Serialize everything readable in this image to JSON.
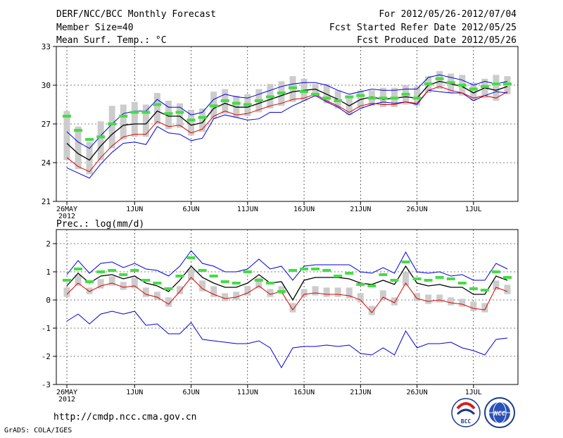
{
  "header": {
    "title_left": "DERF/NCC/BCC Monthly Forecast",
    "member_size": "Member Size=40",
    "top_variable": "Mean Surf. Temp.: °C",
    "range": "For 2012/05/26-2012/07/04",
    "fcst_started": "Fcst Started Refer Date 2012/05/25",
    "fcst_produced": "Fcst Produced Date 2012/05/26"
  },
  "footer": {
    "url": "http://cmdp.ncc.cma.gov.cn",
    "grads": "GrADS: COLA/IGES",
    "logo_bcc": "BCC",
    "logo_ncc": "NCC"
  },
  "colors": {
    "frame": "#000000",
    "grid": "#000000",
    "range_bar": "#cccccc",
    "ensemble_mean": "#000000",
    "upper_bound": "#0000dd",
    "lower_bound": "#0000dd",
    "lower_pct": "#dd0000",
    "climatology": "#44dd44"
  },
  "chart_data": [
    {
      "type": "line",
      "title": "Mean Surf. Temp.: °C",
      "days": 40,
      "x_tick_labels": [
        "26MAY",
        "1JUN",
        "6JUN",
        "11JUN",
        "16JUN",
        "21JUN",
        "26JUN",
        "1JUL"
      ],
      "x_tick_days": [
        0,
        6,
        11,
        16,
        21,
        26,
        31,
        36
      ],
      "x_sub_label": "2012",
      "ylim": [
        21,
        33
      ],
      "y_ticks": [
        21,
        24,
        27,
        30,
        33
      ],
      "grid": true,
      "series": [
        {
          "name": "ensemble_max",
          "values": [
            23.6,
            23.2,
            22.8,
            23.9,
            24.8,
            25.5,
            25.6,
            25.4,
            26.8,
            26.3,
            26.2,
            25.7,
            25.9,
            27.4,
            27.7,
            27.5,
            27.3,
            27.4,
            27.9,
            27.9,
            28.4,
            28.8,
            29.2,
            28.7,
            28.3,
            27.7,
            28.2,
            28.5,
            28.7,
            28.6,
            28.7,
            28.5,
            29.6,
            29.5,
            29.4,
            29.4,
            28.8,
            29.2,
            29.5,
            29.4
          ]
        },
        {
          "name": "ensemble_mean",
          "values": [
            25.5,
            24.7,
            24.2,
            25.3,
            26.2,
            26.9,
            27.0,
            27.0,
            28.0,
            27.6,
            27.6,
            26.9,
            27.1,
            28.2,
            28.6,
            28.3,
            28.3,
            28.6,
            28.9,
            29.2,
            29.5,
            29.6,
            29.7,
            29.3,
            28.9,
            28.4,
            28.9,
            29.1,
            28.9,
            29.0,
            29.1,
            29.0,
            30.0,
            30.3,
            30.1,
            29.9,
            29.4,
            29.8,
            29.6,
            29.9
          ]
        },
        {
          "name": "ensemble_upper",
          "values": [
            26.4,
            25.6,
            25.1,
            26.1,
            27.0,
            27.8,
            28.0,
            28.0,
            28.9,
            28.3,
            28.3,
            27.7,
            27.9,
            28.9,
            29.3,
            29.1,
            29.0,
            29.3,
            29.6,
            29.9,
            30.1,
            30.2,
            30.2,
            30.0,
            29.6,
            29.3,
            29.5,
            29.7,
            29.6,
            29.6,
            29.7,
            29.7,
            30.6,
            30.8,
            30.6,
            30.4,
            30.0,
            30.3,
            30.1,
            30.3
          ]
        },
        {
          "name": "ensemble_lower",
          "values": [
            24.4,
            23.7,
            23.3,
            24.4,
            25.3,
            26.0,
            26.2,
            26.2,
            27.2,
            26.8,
            26.9,
            26.3,
            26.6,
            27.6,
            28.0,
            27.7,
            27.8,
            28.1,
            28.4,
            28.6,
            28.9,
            29.0,
            29.3,
            28.8,
            28.4,
            27.9,
            28.4,
            28.6,
            28.5,
            28.5,
            28.7,
            28.6,
            29.6,
            29.9,
            29.6,
            29.4,
            29.0,
            29.2,
            29.0,
            29.5
          ]
        },
        {
          "name": "ensemble_min",
          "values": [
            27.8,
            26.6,
            25.4,
            27.0,
            28.2,
            28.3,
            28.5,
            28.3,
            29.2,
            28.6,
            28.4,
            27.9,
            28.0,
            29.3,
            29.5,
            29.0,
            29.1,
            29.5,
            29.9,
            30.1,
            30.5,
            30.3,
            29.9,
            29.9,
            29.4,
            29.0,
            29.4,
            29.4,
            29.6,
            29.6,
            29.8,
            29.7,
            30.5,
            30.9,
            30.7,
            30.6,
            30.0,
            30.3,
            30.6,
            30.5
          ]
        },
        {
          "name": "climatology",
          "values": [
            27.6,
            26.5,
            25.8,
            26.0,
            27.0,
            27.6,
            27.9,
            27.9,
            28.5,
            27.8,
            27.9,
            27.3,
            27.5,
            28.4,
            28.8,
            28.6,
            28.5,
            28.8,
            29.1,
            29.4,
            29.8,
            29.5,
            29.3,
            29.0,
            28.8,
            29.1,
            29.2,
            29.0,
            29.0,
            29.0,
            29.3,
            29.0,
            30.1,
            30.5,
            30.2,
            30.0,
            29.7,
            29.9,
            30.1,
            30.1
          ]
        }
      ]
    },
    {
      "type": "line",
      "title": "Prec.: log(mm/d)",
      "days": 40,
      "x_tick_labels": [
        "26MAY",
        "1JUN",
        "6JUN",
        "11JUN",
        "16JUN",
        "21JUN",
        "26JUN",
        "1JUL"
      ],
      "x_tick_days": [
        0,
        6,
        11,
        16,
        21,
        26,
        31,
        36
      ],
      "x_sub_label": "2012",
      "ylim": [
        -3,
        2.5
      ],
      "y_ticks": [
        -3,
        -2,
        -1,
        0,
        1,
        2
      ],
      "grid": true,
      "series": [
        {
          "name": "ensemble_max",
          "values": [
            -0.75,
            -0.5,
            -0.85,
            -0.5,
            -0.4,
            -0.5,
            -0.4,
            -0.9,
            -0.85,
            -1.2,
            -1.2,
            -0.8,
            -1.4,
            -1.45,
            -1.5,
            -1.55,
            -1.55,
            -1.45,
            -1.7,
            -2.4,
            -1.7,
            -1.65,
            -1.65,
            -1.6,
            -1.65,
            -1.6,
            -1.9,
            -1.95,
            -1.7,
            -1.95,
            -1.1,
            -1.7,
            -1.55,
            -1.55,
            -1.5,
            -1.7,
            -1.8,
            -1.95,
            -1.4,
            -1.35
          ]
        },
        {
          "name": "ensemble_mean",
          "values": [
            0.5,
            0.95,
            0.6,
            0.85,
            0.9,
            0.75,
            0.85,
            0.6,
            0.5,
            0.3,
            0.7,
            1.2,
            0.8,
            0.6,
            0.45,
            0.45,
            0.6,
            0.9,
            0.6,
            0.65,
            0.0,
            0.7,
            0.8,
            0.8,
            0.8,
            0.75,
            0.6,
            0.55,
            0.7,
            0.55,
            1.2,
            0.6,
            0.5,
            0.55,
            0.45,
            0.45,
            0.2,
            0.2,
            0.85,
            0.7
          ]
        },
        {
          "name": "ensemble_upper",
          "values": [
            0.9,
            1.4,
            0.95,
            1.3,
            1.35,
            1.15,
            1.3,
            1.1,
            1.05,
            0.85,
            1.2,
            1.75,
            1.3,
            1.2,
            1.0,
            1.0,
            1.1,
            1.45,
            1.1,
            1.2,
            0.7,
            1.2,
            1.25,
            1.25,
            1.25,
            1.25,
            1.0,
            0.95,
            1.15,
            0.95,
            1.7,
            1.0,
            0.95,
            1.0,
            0.85,
            0.9,
            0.7,
            0.7,
            1.3,
            1.1
          ]
        },
        {
          "name": "ensemble_lower",
          "values": [
            0.2,
            0.6,
            0.3,
            0.5,
            0.6,
            0.45,
            0.5,
            0.2,
            0.1,
            -0.15,
            0.3,
            0.8,
            0.4,
            0.2,
            0.05,
            0.1,
            0.25,
            0.5,
            0.2,
            0.3,
            -0.35,
            0.2,
            0.25,
            0.2,
            0.2,
            0.15,
            0.0,
            -0.45,
            0.1,
            -0.1,
            0.6,
            0.05,
            -0.05,
            0.0,
            -0.1,
            -0.15,
            -0.3,
            -0.35,
            0.45,
            0.3
          ]
        },
        {
          "name": "ensemble_min",
          "values": [
            0.35,
            0.8,
            0.35,
            0.65,
            0.75,
            0.55,
            0.7,
            0.35,
            0.2,
            0.0,
            0.4,
            1.0,
            0.6,
            0.4,
            0.15,
            0.2,
            0.4,
            0.7,
            0.3,
            0.4,
            -0.2,
            0.3,
            0.4,
            0.35,
            0.35,
            0.35,
            0.15,
            -0.3,
            0.25,
            0.0,
            0.9,
            0.15,
            0.1,
            0.1,
            0.0,
            -0.05,
            -0.15,
            -0.2,
            0.6,
            0.45
          ]
        },
        {
          "name": "climatology",
          "values": [
            0.7,
            1.1,
            0.65,
            1.0,
            1.05,
            0.9,
            1.05,
            0.7,
            0.6,
            0.4,
            0.85,
            1.5,
            1.05,
            0.85,
            0.65,
            0.6,
            1.0,
            0.7,
            0.6,
            0.3,
            1.05,
            1.1,
            1.1,
            1.05,
            0.85,
            0.95,
            0.55,
            0.5,
            0.9,
            0.7,
            1.35,
            0.75,
            0.7,
            0.8,
            0.75,
            0.6,
            0.4,
            0.35,
            1.0,
            0.8
          ]
        }
      ]
    }
  ]
}
